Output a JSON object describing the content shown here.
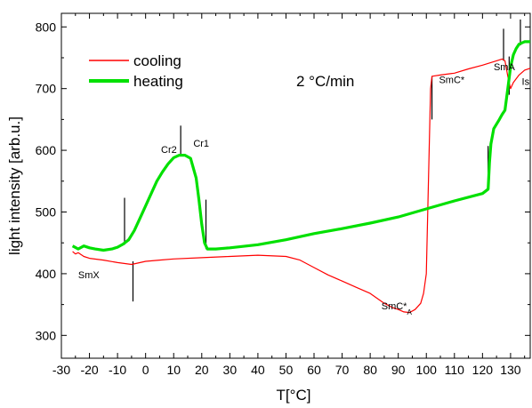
{
  "chart_data": {
    "type": "line",
    "title": "",
    "xlabel": "T[°C]",
    "ylabel": "light intensity [arb.u.]",
    "xlim": [
      -30,
      137
    ],
    "ylim": [
      263,
      822
    ],
    "x_ticks": [
      -30,
      -20,
      -10,
      0,
      10,
      20,
      30,
      40,
      50,
      60,
      70,
      80,
      90,
      100,
      110,
      120,
      130
    ],
    "y_ticks": [
      300,
      400,
      500,
      600,
      700,
      800
    ],
    "grid": false,
    "legend_position": "top-left",
    "rate_label": "2 °C/min",
    "series": [
      {
        "name": "cooling",
        "color": "#ff0000",
        "points": [
          [
            -26,
            436
          ],
          [
            -25,
            432
          ],
          [
            -24,
            434
          ],
          [
            -22,
            428
          ],
          [
            -20,
            425
          ],
          [
            -15,
            422
          ],
          [
            -10,
            418
          ],
          [
            -5,
            415
          ],
          [
            0,
            420
          ],
          [
            5,
            422
          ],
          [
            10,
            424
          ],
          [
            20,
            426
          ],
          [
            30,
            428
          ],
          [
            40,
            430
          ],
          [
            50,
            428
          ],
          [
            55,
            422
          ],
          [
            60,
            410
          ],
          [
            65,
            398
          ],
          [
            70,
            388
          ],
          [
            75,
            378
          ],
          [
            80,
            368
          ],
          [
            85,
            352
          ],
          [
            88,
            345
          ],
          [
            90,
            342
          ],
          [
            92,
            338
          ],
          [
            94,
            337
          ],
          [
            96,
            342
          ],
          [
            98,
            352
          ],
          [
            99,
            368
          ],
          [
            100,
            400
          ],
          [
            100.5,
            500
          ],
          [
            101,
            600
          ],
          [
            101.5,
            700
          ],
          [
            102,
            720
          ],
          [
            105,
            722
          ],
          [
            110,
            725
          ],
          [
            115,
            732
          ],
          [
            120,
            738
          ],
          [
            125,
            745
          ],
          [
            127,
            748
          ],
          [
            128,
            745
          ],
          [
            129,
            720
          ],
          [
            130,
            700
          ],
          [
            131,
            710
          ],
          [
            133,
            722
          ],
          [
            135,
            730
          ],
          [
            137,
            733
          ]
        ]
      },
      {
        "name": "heating",
        "color": "#00e000",
        "points": [
          [
            -26,
            445
          ],
          [
            -24,
            440
          ],
          [
            -22,
            445
          ],
          [
            -20,
            442
          ],
          [
            -18,
            440
          ],
          [
            -15,
            438
          ],
          [
            -12,
            440
          ],
          [
            -10,
            443
          ],
          [
            -8,
            448
          ],
          [
            -6,
            455
          ],
          [
            -4,
            470
          ],
          [
            -2,
            490
          ],
          [
            0,
            510
          ],
          [
            2,
            530
          ],
          [
            4,
            550
          ],
          [
            6,
            565
          ],
          [
            8,
            578
          ],
          [
            10,
            588
          ],
          [
            12,
            592
          ],
          [
            14,
            592
          ],
          [
            16,
            587
          ],
          [
            18,
            555
          ],
          [
            19,
            520
          ],
          [
            20,
            480
          ],
          [
            21,
            450
          ],
          [
            22,
            440
          ],
          [
            25,
            440
          ],
          [
            30,
            442
          ],
          [
            40,
            447
          ],
          [
            50,
            455
          ],
          [
            60,
            465
          ],
          [
            70,
            473
          ],
          [
            80,
            482
          ],
          [
            90,
            492
          ],
          [
            100,
            505
          ],
          [
            110,
            518
          ],
          [
            120,
            530
          ],
          [
            122,
            537
          ],
          [
            122.5,
            580
          ],
          [
            123,
            610
          ],
          [
            124,
            635
          ],
          [
            126,
            650
          ],
          [
            127,
            658
          ],
          [
            128,
            665
          ],
          [
            129,
            700
          ],
          [
            130,
            735
          ],
          [
            131,
            755
          ],
          [
            132,
            765
          ],
          [
            133,
            772
          ],
          [
            135,
            776
          ],
          [
            137,
            776
          ]
        ]
      }
    ],
    "markers": [
      {
        "x": -7.5,
        "y1": 447,
        "y2": 523
      },
      {
        "x": -4.5,
        "y1": 355,
        "y2": 420
      },
      {
        "x": 12.5,
        "y1": 590,
        "y2": 640
      },
      {
        "x": 21.5,
        "y1": 440,
        "y2": 520
      },
      {
        "x": 102,
        "y1": 650,
        "y2": 720
      },
      {
        "x": 122,
        "y1": 537,
        "y2": 607
      },
      {
        "x": 127.5,
        "y1": 745,
        "y2": 797
      },
      {
        "x": 129.5,
        "y1": 690,
        "y2": 752
      },
      {
        "x": 133.5,
        "y1": 770,
        "y2": 812
      }
    ],
    "annotations": [
      {
        "text": "Cr2",
        "x": 5.5,
        "y": 596
      },
      {
        "text": "Cr1",
        "x": 17,
        "y": 606
      },
      {
        "text": "SmX",
        "x": -24,
        "y": 393
      },
      {
        "text": "SmC*",
        "x": 84,
        "y": 342,
        "sub": "A"
      },
      {
        "text": "SmC*",
        "x": 104.5,
        "y": 709
      },
      {
        "text": "SmA",
        "x": 124,
        "y": 730
      },
      {
        "text": "Is",
        "x": 134,
        "y": 706
      }
    ]
  }
}
